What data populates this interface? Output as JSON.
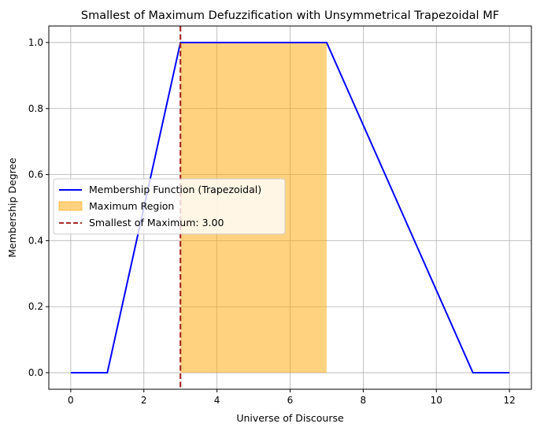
{
  "chart_data": {
    "type": "line",
    "title": "Smallest of Maximum Defuzzification with Unsymmetrical Trapezoidal MF",
    "xlabel": "Universe of Discourse",
    "ylabel": "Membership Degree",
    "xlim": [
      -0.6,
      12.6
    ],
    "ylim": [
      -0.05,
      1.05
    ],
    "xticks": [
      0,
      2,
      4,
      6,
      8,
      10,
      12
    ],
    "xtick_labels": [
      "0",
      "2",
      "4",
      "6",
      "8",
      "10",
      "12"
    ],
    "yticks": [
      0.0,
      0.2,
      0.4,
      0.6,
      0.8,
      1.0
    ],
    "ytick_labels": [
      "0.0",
      "0.2",
      "0.4",
      "0.6",
      "0.8",
      "1.0"
    ],
    "grid": true,
    "legend_position": "center-left",
    "series": [
      {
        "name": "Membership Function (Trapezoidal)",
        "kind": "line",
        "color": "#0000ff",
        "x": [
          0,
          1,
          3,
          7,
          11,
          12
        ],
        "y": [
          0,
          0,
          1,
          1,
          0,
          0
        ]
      }
    ],
    "fill_region": {
      "name": "Maximum Region",
      "color": "#ffa500",
      "opacity": 0.5,
      "x": [
        3,
        7
      ],
      "y_low": 0,
      "y_high": 1
    },
    "vline": {
      "name": "Smallest of Maximum: 3.00",
      "x": 3.0,
      "color": "#a52a2a",
      "style": "dashed"
    }
  }
}
